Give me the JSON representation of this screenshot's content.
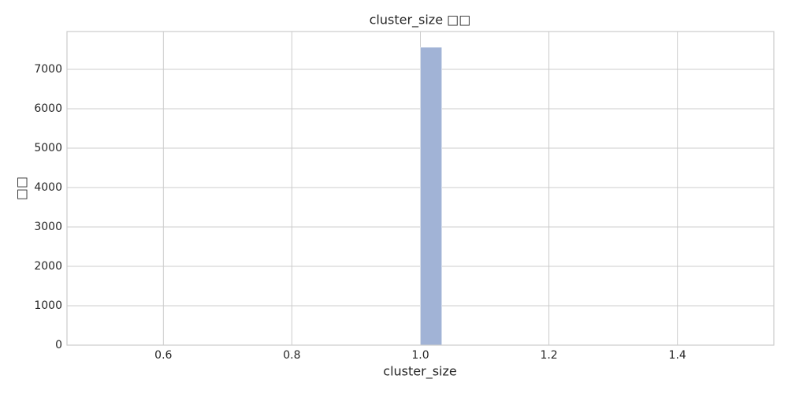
{
  "chart_data": {
    "type": "histogram",
    "title": "cluster_size □□",
    "x_label": "cluster_size",
    "y_label": "□□",
    "bins": [
      1,
      1.0333
    ],
    "values": [
      7560
    ],
    "color": "#a1b3d6",
    "xlim": [
      0.45,
      1.55
    ],
    "xticks": [
      {
        "value": 0.6,
        "label": "0.6"
      },
      {
        "value": 0.8,
        "label": "0.8"
      },
      {
        "value": 1,
        "label": "1.0"
      },
      {
        "value": 1.2,
        "label": "1.2"
      },
      {
        "value": 1.4,
        "label": "1.4"
      }
    ],
    "ylim": [
      0,
      7960
    ],
    "yticks": [
      0,
      1000,
      2000,
      3000,
      4000,
      5000,
      6000,
      7000
    ],
    "grid": true
  }
}
